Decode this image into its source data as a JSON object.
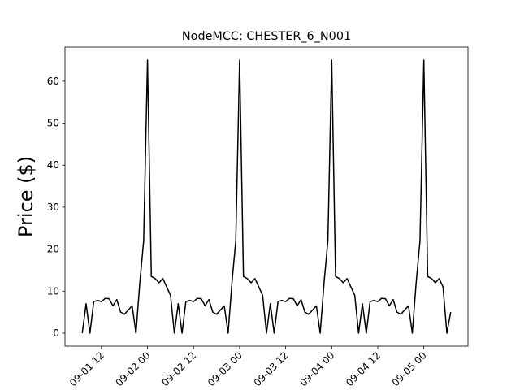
{
  "chart_data": {
    "type": "line",
    "title": "NodeMCC: CHESTER_6_N001",
    "y_label": "Price ($)",
    "x": [
      "09-01 07",
      "09-01 08",
      "09-01 09",
      "09-01 10",
      "09-01 11",
      "09-01 12",
      "09-01 13",
      "09-01 14",
      "09-01 15",
      "09-01 16",
      "09-01 17",
      "09-01 18",
      "09-01 19",
      "09-01 20",
      "09-01 21",
      "09-01 22",
      "09-01 23",
      "09-02 00",
      "09-02 01",
      "09-02 02",
      "09-02 03",
      "09-02 04",
      "09-02 05",
      "09-02 06",
      "09-02 07",
      "09-02 08",
      "09-02 09",
      "09-02 10",
      "09-02 11",
      "09-02 12",
      "09-02 13",
      "09-02 14",
      "09-02 15",
      "09-02 16",
      "09-02 17",
      "09-02 18",
      "09-02 19",
      "09-02 20",
      "09-02 21",
      "09-02 22",
      "09-02 23",
      "09-03 00",
      "09-03 01",
      "09-03 02",
      "09-03 03",
      "09-03 04",
      "09-03 05",
      "09-03 06",
      "09-03 07",
      "09-03 08",
      "09-03 09",
      "09-03 10",
      "09-03 11",
      "09-03 12",
      "09-03 13",
      "09-03 14",
      "09-03 15",
      "09-03 16",
      "09-03 17",
      "09-03 18",
      "09-03 19",
      "09-03 20",
      "09-03 21",
      "09-03 22",
      "09-03 23",
      "09-04 00",
      "09-04 01",
      "09-04 02",
      "09-04 03",
      "09-04 04",
      "09-04 05",
      "09-04 06",
      "09-04 07",
      "09-04 08",
      "09-04 09",
      "09-04 10",
      "09-04 11",
      "09-04 12",
      "09-04 13",
      "09-04 14",
      "09-04 15",
      "09-04 16",
      "09-04 17",
      "09-04 18",
      "09-04 19",
      "09-04 20",
      "09-04 21",
      "09-04 22",
      "09-04 23",
      "09-05 00",
      "09-05 01",
      "09-05 02",
      "09-05 03",
      "09-05 04",
      "09-05 05",
      "09-05 06",
      "09-05 07"
    ],
    "series": [
      {
        "name": "CHESTER_6_N001",
        "color": "#000000",
        "values": [
          0,
          7,
          0,
          7.5,
          7.8,
          7.5,
          8.3,
          8.2,
          6.5,
          8,
          5,
          4.5,
          5.5,
          6.5,
          0,
          12,
          22,
          65,
          13.5,
          13,
          12,
          13,
          11,
          9,
          0,
          7,
          0,
          7.5,
          7.8,
          7.5,
          8.3,
          8.2,
          6.5,
          8,
          5,
          4.5,
          5.5,
          6.5,
          0,
          12,
          22,
          65,
          13.5,
          13,
          12,
          13,
          11,
          9,
          0,
          7,
          0,
          7.5,
          7.8,
          7.5,
          8.3,
          8.2,
          6.5,
          8,
          5,
          4.5,
          5.5,
          6.5,
          0,
          12,
          22,
          65,
          13.5,
          13,
          12,
          13,
          11,
          9,
          0,
          7,
          0,
          7.5,
          7.8,
          7.5,
          8.3,
          8.2,
          6.5,
          8,
          5,
          4.5,
          5.5,
          6.5,
          0,
          12,
          22,
          65,
          13.5,
          13,
          12,
          13,
          11,
          0,
          5
        ]
      }
    ],
    "xlim": [
      "09-01 02:30",
      "09-05 11:30"
    ],
    "xticks": [
      "09-01 12",
      "09-02 00",
      "09-02 12",
      "09-03 00",
      "09-03 12",
      "09-04 00",
      "09-04 12",
      "09-05 00"
    ],
    "ylim": [
      -3.1,
      68.1
    ],
    "yticks": [
      0,
      10,
      20,
      30,
      40,
      50,
      60
    ]
  }
}
